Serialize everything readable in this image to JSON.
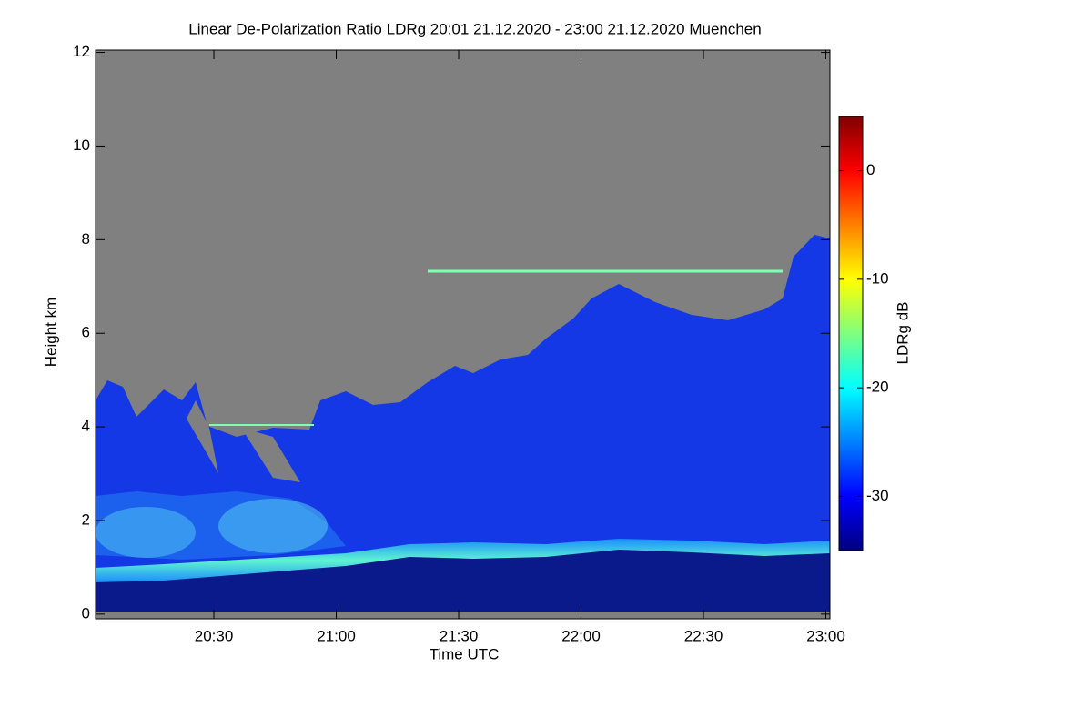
{
  "chart_data": {
    "type": "heatmap",
    "title": "Linear De-Polarization Ratio LDRg   20:01 21.12.2020 - 23:00 21.12.2020 Muenchen",
    "x_label": "Time UTC",
    "y_label": "Height km",
    "xlim": [
      1201,
      1381
    ],
    "xticks": [
      {
        "value": 1230,
        "label": "20:30"
      },
      {
        "value": 1260,
        "label": "21:00"
      },
      {
        "value": 1290,
        "label": "21:30"
      },
      {
        "value": 1320,
        "label": "22:00"
      },
      {
        "value": 1350,
        "label": "22:30"
      },
      {
        "value": 1380,
        "label": "23:00"
      }
    ],
    "ylim": [
      -0.1,
      12.05
    ],
    "yticks": [
      0,
      2,
      4,
      6,
      8,
      10,
      12
    ],
    "colorbar": {
      "label": "LDRg dB",
      "clim": [
        -35,
        5
      ],
      "ticks": [
        0,
        -10,
        -20,
        -30
      ],
      "colormap": "jet"
    }
  }
}
